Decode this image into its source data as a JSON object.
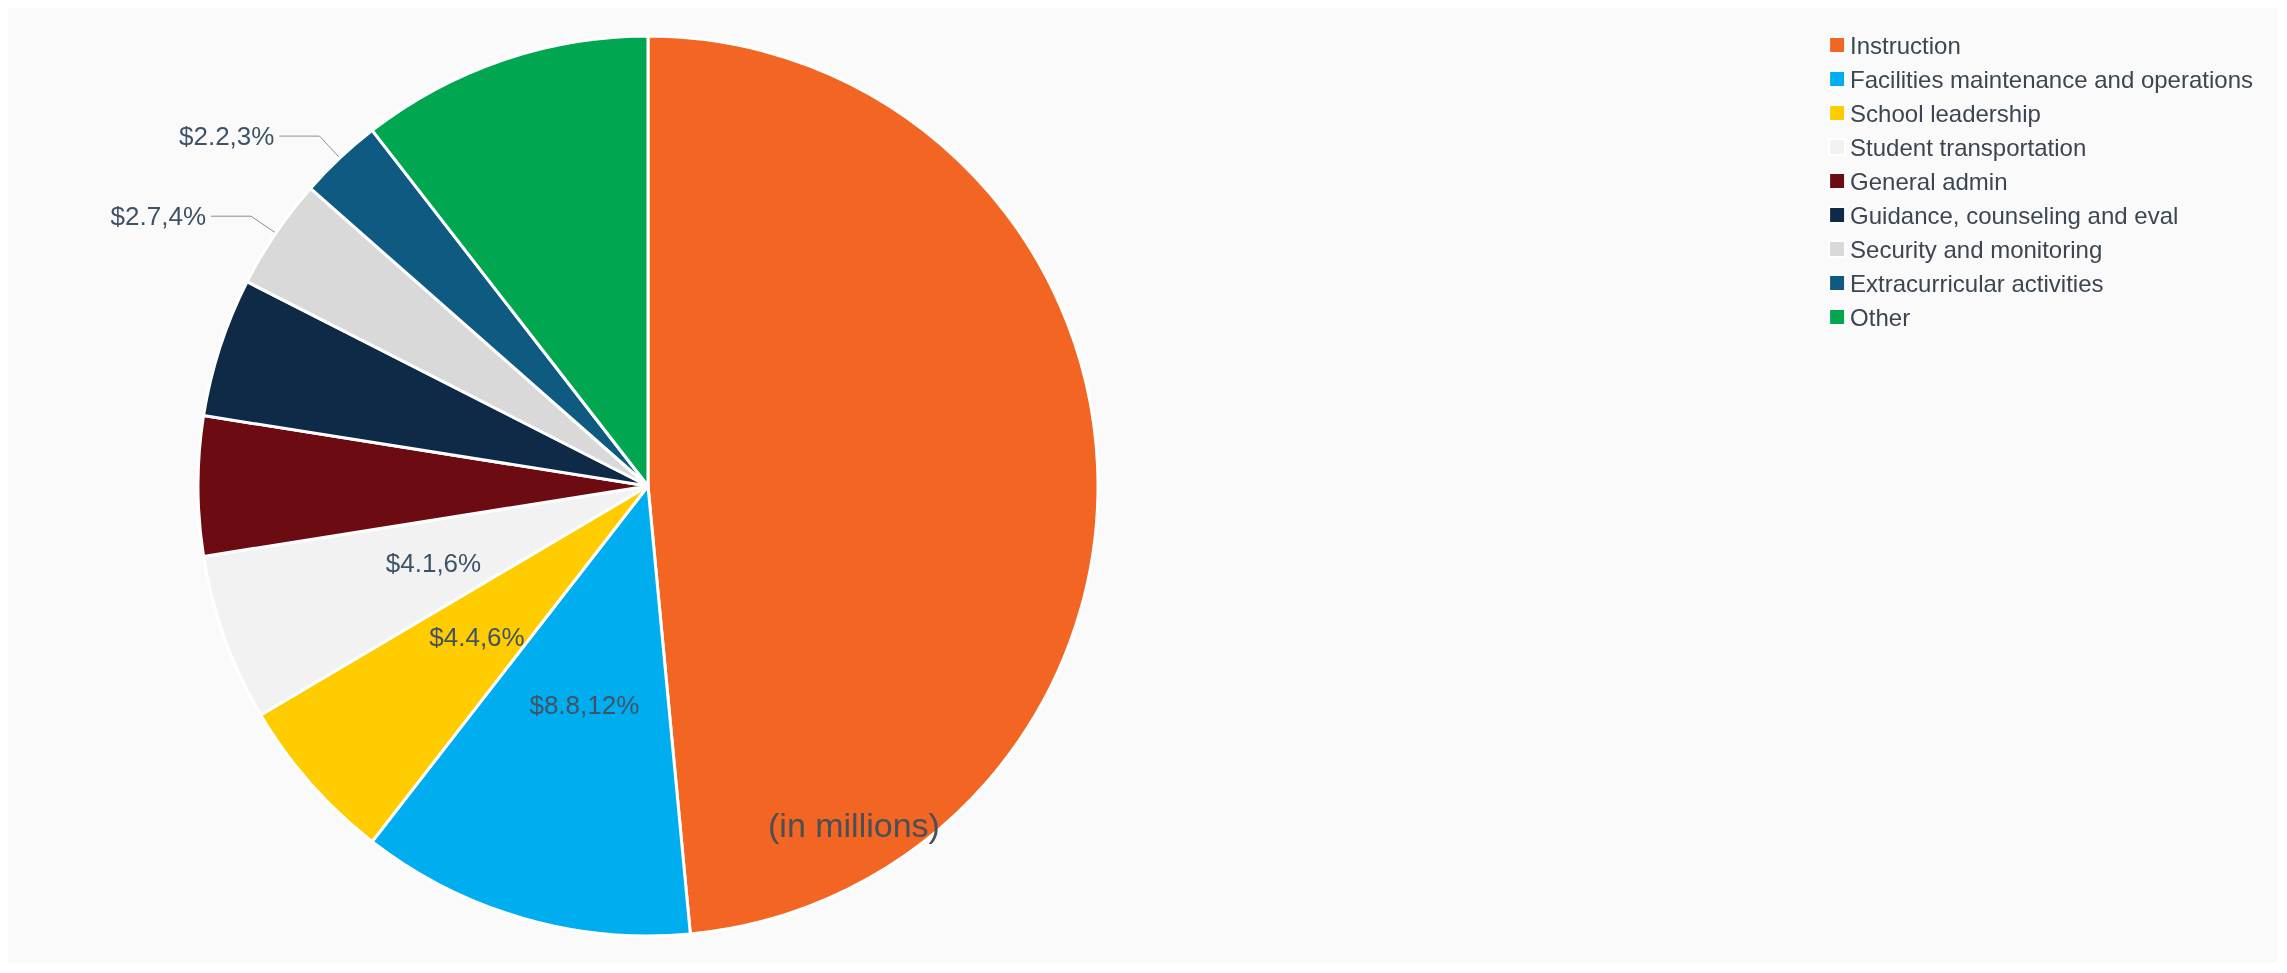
{
  "chart_data": {
    "type": "pie",
    "categories": [
      "Instruction",
      "Facilities maintenance and operations",
      "School leadership",
      "Student transportation",
      "General admin",
      "Guidance, counseling and eval",
      "Security and monitoring",
      "Extracurricular activities",
      "Other"
    ],
    "values": [
      48.5,
      12,
      6,
      6,
      5,
      5,
      4,
      3,
      10.5
    ],
    "colors": [
      "#f26522",
      "#00aeef",
      "#ffcc00",
      "#f2f2f2",
      "#6d0b12",
      "#0e2a47",
      "#d9d9d9",
      "#0f5a80",
      "#00a650"
    ],
    "value_labels": [
      null,
      "$8.8,12%",
      "$4.4,6%",
      "$4.1,6%",
      null,
      null,
      "$2.7,4%",
      "$2.2,3%",
      null
    ],
    "annotations": [
      "(in millions)"
    ],
    "legend": "top right"
  }
}
